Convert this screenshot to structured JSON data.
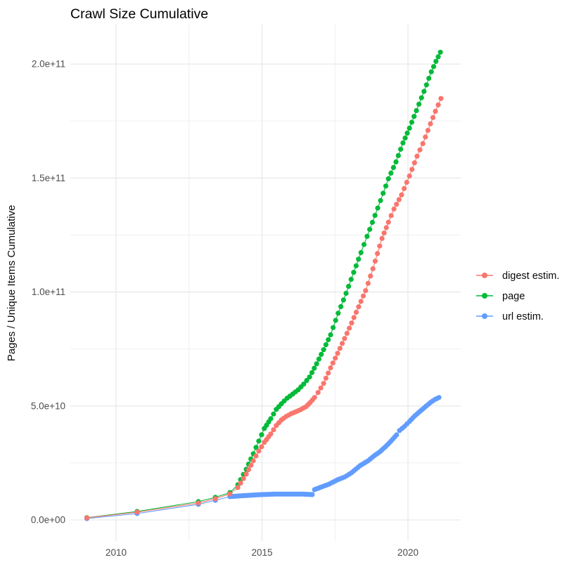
{
  "chart_data": {
    "type": "scatter",
    "title": "Crawl Size Cumulative",
    "xlabel": "",
    "ylabel": "Pages / Unique Items Cumulative",
    "background_color": "#FFFFFF",
    "grid": true,
    "grid_color": "#E5E5E5",
    "minor_grid_color": "#F0F0F0",
    "tick_label_color": "#4D4D4D",
    "text_color": "#000000",
    "legend_position": "right",
    "xlim": [
      2008.4,
      2021.8
    ],
    "ylim": [
      -9000000000,
      218000000000
    ],
    "y_unit": "items (value_e9 = billions)",
    "x_ticks": [
      {
        "value": 2010,
        "label": "2010"
      },
      {
        "value": 2015,
        "label": "2015"
      },
      {
        "value": 2020,
        "label": "2020"
      }
    ],
    "x_minor_ticks": [
      2012.5,
      2017.5
    ],
    "y_ticks": [
      {
        "value_e9": 0,
        "label": "0.0e+00"
      },
      {
        "value_e9": 50,
        "label": "5.0e+10"
      },
      {
        "value_e9": 100,
        "label": "1.0e+11"
      },
      {
        "value_e9": 150,
        "label": "1.5e+11"
      },
      {
        "value_e9": 200,
        "label": "2.0e+11"
      }
    ],
    "y_minor_ticks_e9": [
      25,
      75,
      125,
      175
    ],
    "series": [
      {
        "name": "digest estim.",
        "color": "#F8766D",
        "dense_from": 2014.1,
        "dot_spacing_years": 0.085,
        "points": [
          [
            2009.0,
            0.9
          ],
          [
            2010.72,
            3.4
          ],
          [
            2012.82,
            7.4
          ],
          [
            2013.4,
            9.3
          ],
          [
            2013.9,
            11.4
          ],
          [
            2014.17,
            14.2
          ],
          [
            2014.46,
            20.1
          ],
          [
            2014.7,
            25.9
          ],
          [
            2014.89,
            30.2
          ],
          [
            2015.08,
            34.0
          ],
          [
            2015.3,
            37.7
          ],
          [
            2015.49,
            41.4
          ],
          [
            2015.66,
            43.8
          ],
          [
            2015.83,
            45.4
          ],
          [
            2016.0,
            46.6
          ],
          [
            2016.17,
            47.5
          ],
          [
            2016.34,
            48.5
          ],
          [
            2016.51,
            49.7
          ],
          [
            2016.65,
            51.5
          ],
          [
            2016.8,
            53.7
          ],
          [
            2016.92,
            55.9
          ],
          [
            2017.11,
            59.9
          ],
          [
            2017.35,
            66.7
          ],
          [
            2017.59,
            73.1
          ],
          [
            2017.83,
            79.6
          ],
          [
            2018.07,
            86.4
          ],
          [
            2018.31,
            93.5
          ],
          [
            2018.55,
            100.6
          ],
          [
            2018.8,
            110.2
          ],
          [
            2019.11,
            123.5
          ],
          [
            2019.33,
            130.6
          ],
          [
            2019.52,
            136.4
          ],
          [
            2019.78,
            142.6
          ],
          [
            2020.05,
            150.9
          ],
          [
            2020.31,
            159.6
          ],
          [
            2020.51,
            165.1
          ],
          [
            2020.77,
            173.8
          ],
          [
            2020.94,
            179.3
          ],
          [
            2021.13,
            184.9
          ]
        ]
      },
      {
        "name": "page",
        "color": "#00BA38",
        "dense_from": 2014.1,
        "dot_spacing_years": 0.085,
        "points": [
          [
            2009.0,
            1.0
          ],
          [
            2010.72,
            3.7
          ],
          [
            2012.82,
            8.0
          ],
          [
            2013.4,
            9.9
          ],
          [
            2013.9,
            12.0
          ],
          [
            2014.17,
            15.4
          ],
          [
            2014.46,
            22.2
          ],
          [
            2014.7,
            29.0
          ],
          [
            2014.89,
            34.6
          ],
          [
            2015.08,
            40.1
          ],
          [
            2015.3,
            44.4
          ],
          [
            2015.49,
            48.5
          ],
          [
            2015.66,
            50.9
          ],
          [
            2015.86,
            53.4
          ],
          [
            2016.05,
            55.2
          ],
          [
            2016.24,
            57.1
          ],
          [
            2016.43,
            59.6
          ],
          [
            2016.63,
            62.7
          ],
          [
            2016.87,
            68.5
          ],
          [
            2017.11,
            74.7
          ],
          [
            2017.35,
            81.2
          ],
          [
            2017.61,
            90.7
          ],
          [
            2017.88,
            99.4
          ],
          [
            2018.14,
            108.6
          ],
          [
            2018.39,
            117.3
          ],
          [
            2018.6,
            124.4
          ],
          [
            2018.87,
            133.6
          ],
          [
            2019.06,
            140.1
          ],
          [
            2019.33,
            149.7
          ],
          [
            2019.59,
            157.1
          ],
          [
            2019.83,
            165.4
          ],
          [
            2020.05,
            171.9
          ],
          [
            2020.29,
            179.6
          ],
          [
            2020.55,
            188.0
          ],
          [
            2020.8,
            196.6
          ],
          [
            2020.96,
            201.2
          ],
          [
            2021.11,
            205.2
          ]
        ]
      },
      {
        "name": "url estim.",
        "color": "#619CFF",
        "dense_from": 2013.8,
        "dot_spacing_years": 0.07,
        "points": [
          [
            2009.0,
            0.6
          ],
          [
            2010.72,
            2.8
          ],
          [
            2012.82,
            6.8
          ],
          [
            2013.4,
            8.6
          ],
          [
            2013.9,
            10.2
          ],
          [
            2014.22,
            10.5
          ],
          [
            2014.58,
            10.8
          ],
          [
            2014.99,
            11.1
          ],
          [
            2015.42,
            11.3
          ],
          [
            2015.9,
            11.3
          ],
          [
            2016.39,
            11.3
          ],
          [
            2016.72,
            11.1
          ],
          [
            2016.8,
            13.3
          ],
          [
            2016.99,
            14.2
          ],
          [
            2017.3,
            15.7
          ],
          [
            2017.59,
            17.6
          ],
          [
            2017.83,
            18.8
          ],
          [
            2018.07,
            20.7
          ],
          [
            2018.36,
            23.8
          ],
          [
            2018.63,
            25.9
          ],
          [
            2018.84,
            28.1
          ],
          [
            2019.04,
            29.9
          ],
          [
            2019.23,
            32.1
          ],
          [
            2019.42,
            34.6
          ],
          [
            2019.61,
            37.3
          ],
          [
            2019.71,
            39.2
          ],
          [
            2019.88,
            41.0
          ],
          [
            2020.05,
            43.2
          ],
          [
            2020.24,
            45.7
          ],
          [
            2020.43,
            47.8
          ],
          [
            2020.63,
            50.0
          ],
          [
            2020.77,
            51.5
          ],
          [
            2020.92,
            52.8
          ],
          [
            2021.06,
            53.7
          ]
        ]
      }
    ]
  }
}
